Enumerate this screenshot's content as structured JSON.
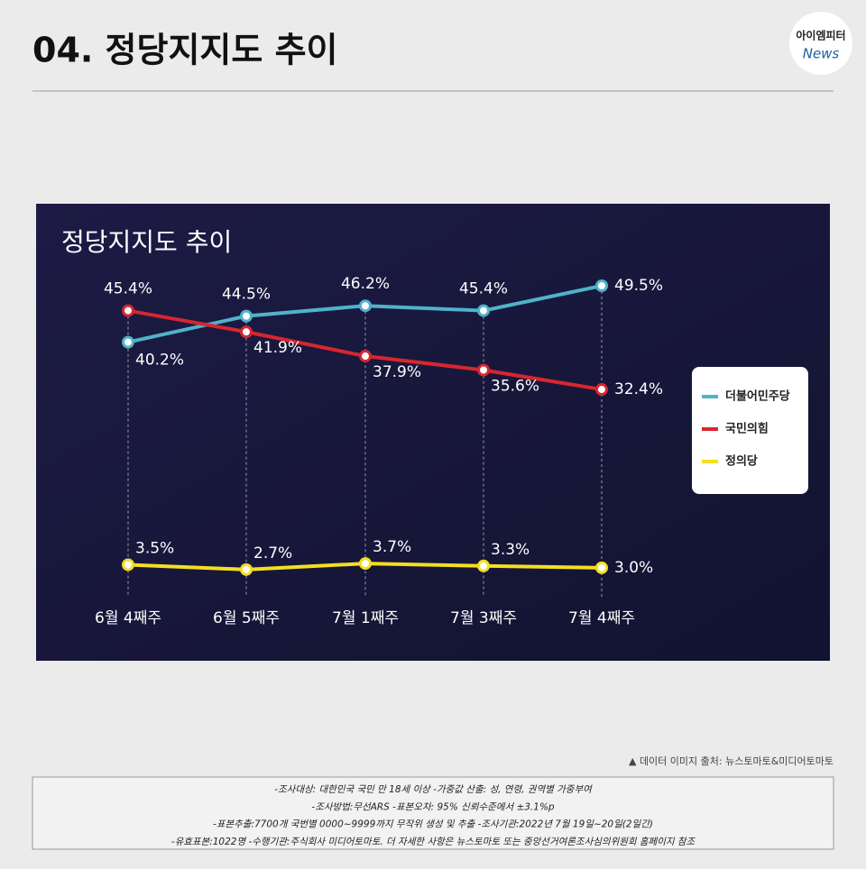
{
  "header": {
    "title": "04. 정당지지도 추이",
    "logo_top": "아이엠피터",
    "logo_bottom": "News"
  },
  "chart_data": {
    "type": "line",
    "title": "정당지지도 추이",
    "categories": [
      "6월 4째주",
      "6월 5째주",
      "7월 1째주",
      "7월 3째주",
      "7월 4째주"
    ],
    "series": [
      {
        "name": "더불어민주당",
        "color": "#4fb3c9",
        "values": [
          40.2,
          44.5,
          46.2,
          45.4,
          49.5
        ],
        "value_labels": [
          "40.2%",
          "44.5%",
          "46.2%",
          "45.4%",
          "49.5%"
        ]
      },
      {
        "name": "국민의힘",
        "color": "#d7262f",
        "values": [
          45.4,
          41.9,
          37.9,
          35.6,
          32.4
        ],
        "value_labels": [
          "45.4%",
          "41.9%",
          "37.9%",
          "35.6%",
          "32.4%"
        ]
      },
      {
        "name": "정의당",
        "color": "#f4de22",
        "values": [
          3.5,
          2.7,
          3.7,
          3.3,
          3.0
        ],
        "value_labels": [
          "3.5%",
          "2.7%",
          "3.7%",
          "3.3%",
          "3.0%"
        ]
      }
    ],
    "legend": "right"
  },
  "source": "▲ 데이터 이미지 출처: 뉴스토마토&미디어토마토",
  "notes": [
    "-조사대상: 대한민국 국민 만 18세 이상  -가중값 산출: 성, 연령, 권역별 가중부여",
    "-조사방법:무선ARS -표본오차: 95% 신뢰수준에서 ±3.1%p",
    "-표본추출:7700개 국번별 0000~9999까지 무작위 생성 및 추출 -조사기관:2022년 7월 19일~20일(2일간)",
    "-유효표본:1022명 -수행기관:주식회사 미디어토마토. 더 자세한 사항은 뉴스토마토 또는 중앙선거여론조사심의위원회 홈페이지 참조"
  ]
}
